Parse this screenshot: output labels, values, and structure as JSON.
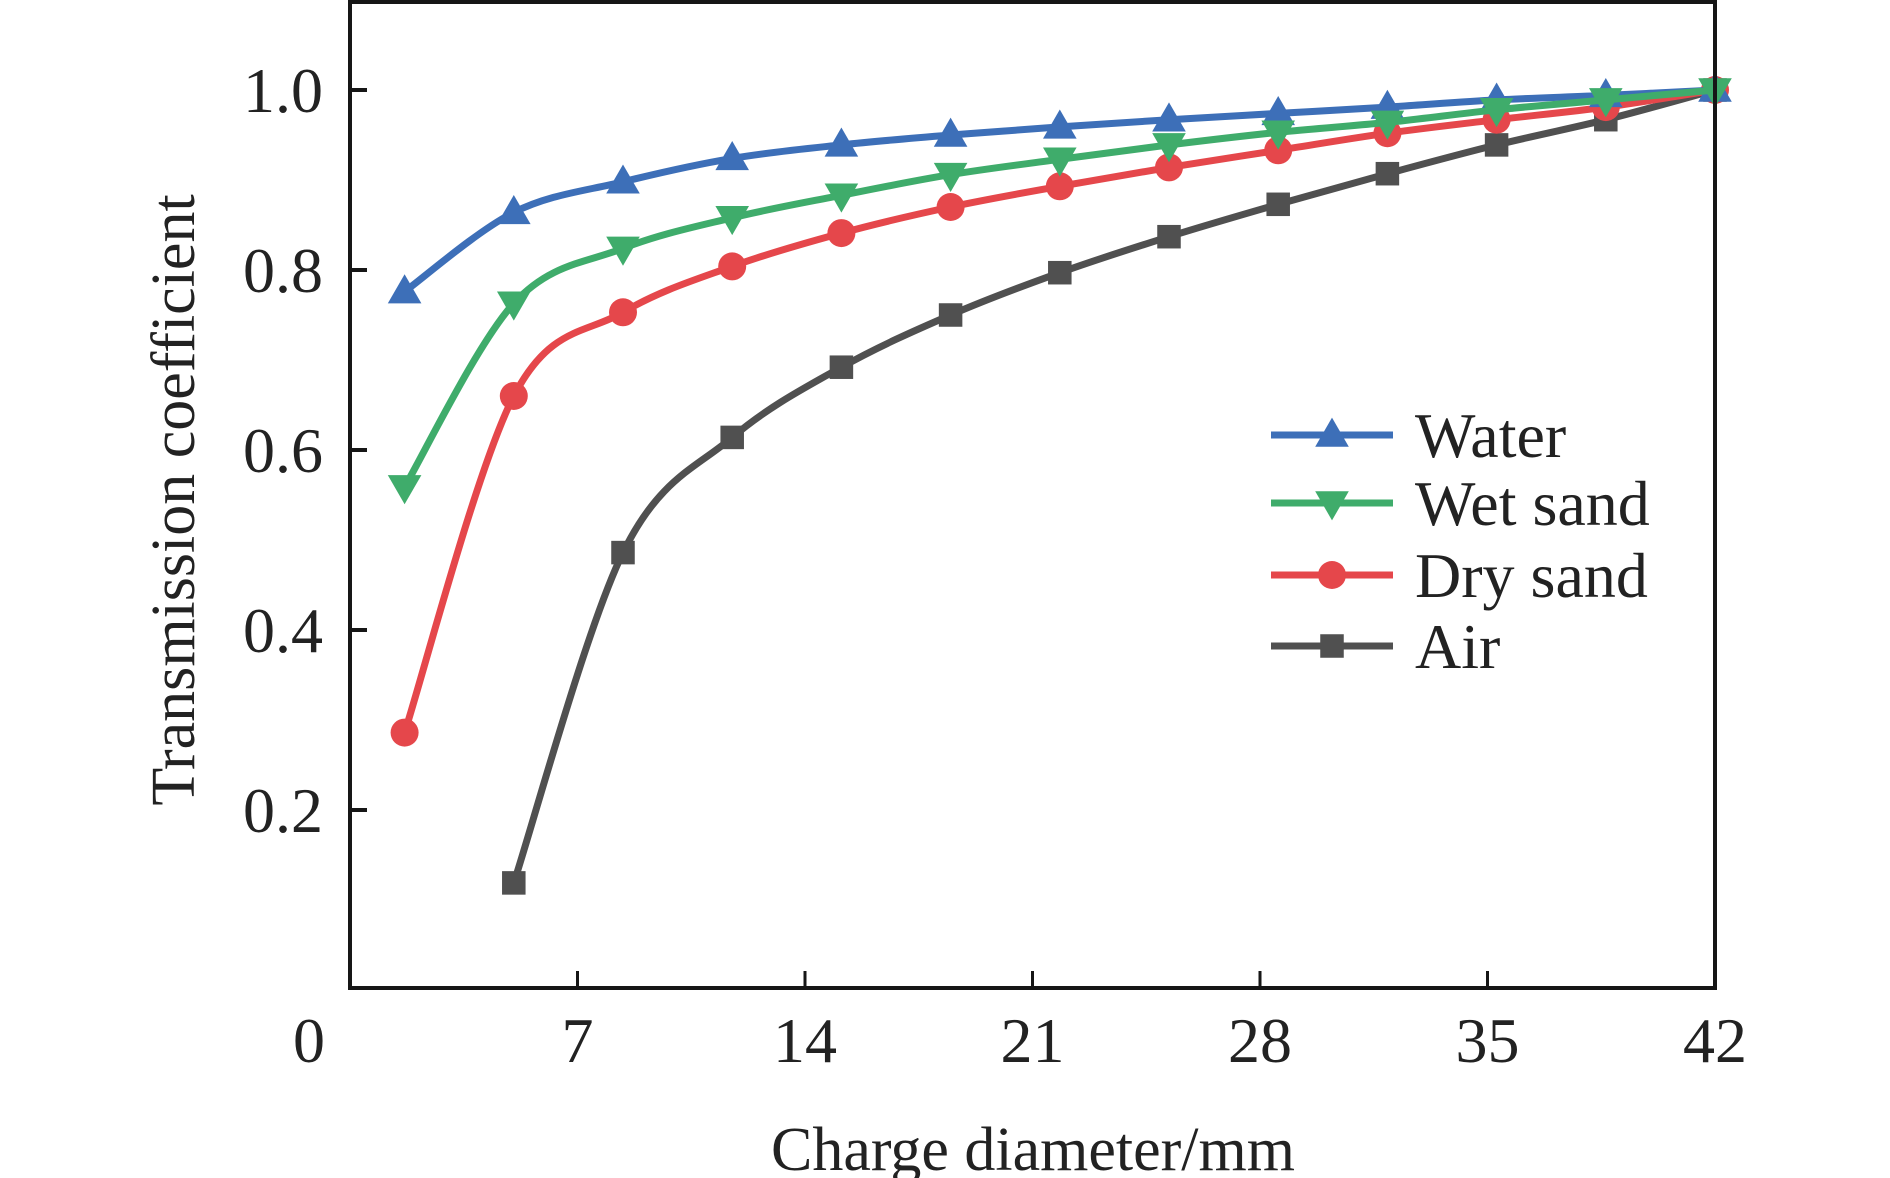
{
  "chart_data": {
    "type": "line",
    "title": "",
    "xlabel": "Charge diameter/mm",
    "ylabel": "Transmission coefficient",
    "xlim": [
      0,
      42
    ],
    "ylim": [
      0,
      1.1
    ],
    "x_ticks": [
      0,
      7,
      14,
      21,
      28,
      35,
      42
    ],
    "x_tick_labels": [
      "0",
      "7",
      "14",
      "21",
      "28",
      "35",
      "42"
    ],
    "y_ticks": [
      0.2,
      0.4,
      0.6,
      0.8,
      1.0
    ],
    "y_tick_labels": [
      "0.2",
      "0.4",
      "0.6",
      "0.8",
      "1.0"
    ],
    "grid": false,
    "legend_position": "center-right",
    "x": [
      1.68,
      5.04,
      8.4,
      11.76,
      15.12,
      18.48,
      21.84,
      25.2,
      28.56,
      31.92,
      35.28,
      38.64,
      42.0
    ],
    "series": [
      {
        "name": "Water",
        "color": "#3d6fb8",
        "marker": "triangle-up",
        "values": [
          0.776,
          0.864,
          0.898,
          0.924,
          0.939,
          0.95,
          0.959,
          0.967,
          0.974,
          0.981,
          0.989,
          0.994,
          1.0
        ]
      },
      {
        "name": "Wet sand",
        "color": "#3fac6b",
        "marker": "triangle-down",
        "values": [
          0.559,
          0.763,
          0.824,
          0.858,
          0.883,
          0.906,
          0.923,
          0.939,
          0.953,
          0.964,
          0.978,
          0.989,
          1.0
        ]
      },
      {
        "name": "Dry sand",
        "color": "#e5474b",
        "marker": "circle",
        "values": [
          0.286,
          0.66,
          0.753,
          0.804,
          0.841,
          0.87,
          0.893,
          0.914,
          0.933,
          0.952,
          0.967,
          0.981,
          1.0
        ]
      },
      {
        "name": "Air",
        "color": "#505050",
        "marker": "square",
        "values": [
          null,
          0.119,
          0.486,
          0.614,
          0.692,
          0.75,
          0.797,
          0.837,
          0.873,
          0.907,
          0.939,
          0.967,
          1.0
        ]
      }
    ]
  }
}
